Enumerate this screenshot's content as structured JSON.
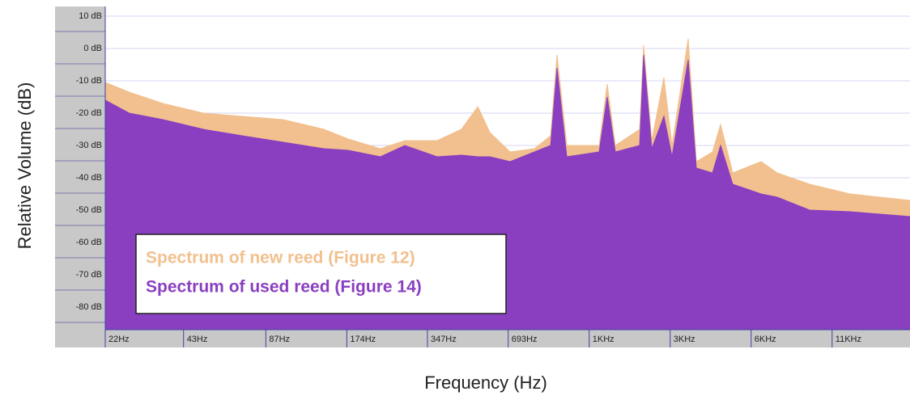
{
  "chart_data": {
    "type": "area",
    "x_label": "Frequency (Hz)",
    "y_label": "Relative Volume (dB)",
    "xscale": "log",
    "grid": true,
    "legend": "lower left",
    "xlim": [
      22,
      21600
    ],
    "ylim": [
      -87,
      13
    ],
    "xticks": [
      {
        "value": 22,
        "label": "22Hz"
      },
      {
        "value": 43,
        "label": "43Hz"
      },
      {
        "value": 87,
        "label": "87Hz"
      },
      {
        "value": 174,
        "label": "174Hz"
      },
      {
        "value": 347,
        "label": "347Hz"
      },
      {
        "value": 693,
        "label": "693Hz"
      },
      {
        "value": 1386,
        "label": "1KHz"
      },
      {
        "value": 2772,
        "label": "3KHz"
      },
      {
        "value": 5544,
        "label": "6KHz"
      },
      {
        "value": 11088,
        "label": "11KHz"
      }
    ],
    "yticks": [
      {
        "value": 10,
        "label": "10 dB"
      },
      {
        "value": 0,
        "label": "0 dB"
      },
      {
        "value": -10,
        "label": "-10 dB"
      },
      {
        "value": -20,
        "label": "-20 dB"
      },
      {
        "value": -30,
        "label": "-30 dB"
      },
      {
        "value": -40,
        "label": "-40 dB"
      },
      {
        "value": -50,
        "label": "-50 dB"
      },
      {
        "value": -60,
        "label": "-60 dB"
      },
      {
        "value": -70,
        "label": "-70 dB"
      },
      {
        "value": -80,
        "label": "-80 dB"
      }
    ],
    "x": [
      22,
      27,
      36,
      51,
      71,
      101,
      143,
      176,
      232,
      286,
      377,
      464,
      534,
      592,
      704,
      867,
      996,
      1052,
      1144,
      1509,
      1617,
      1733,
      2134,
      2209,
      2368,
      2627,
      2816,
      3234,
      3467,
      3982,
      4268,
      4736,
      6036,
      6932,
      9150,
      12940,
      21600
    ],
    "series": [
      {
        "name": "Spectrum of new reed  (Figure 12)",
        "color": "#f2c08e",
        "values": [
          -10.5,
          -13.5,
          -17,
          -20,
          -21,
          -22,
          -25,
          -28,
          -31,
          -28.5,
          -28.5,
          -25,
          -18,
          -26,
          -32,
          -31,
          -27,
          -2,
          -30,
          -30,
          -11,
          -30,
          -25,
          1,
          -28.5,
          -9,
          -30,
          3,
          -35,
          -32,
          -23.5,
          -38.5,
          -35,
          -38.5,
          -42,
          -45,
          -47
        ]
      },
      {
        "name": "Spectrum of used reed (Figure 14)",
        "color": "#8a3fc0",
        "values": [
          -16,
          -20,
          -22,
          -25,
          -27,
          -29,
          -31,
          -31.5,
          -33.5,
          -30,
          -33.5,
          -33,
          -33.5,
          -33.5,
          -35,
          -32,
          -30,
          -6,
          -33.5,
          -32,
          -15,
          -32,
          -30,
          -2,
          -31,
          -21,
          -33.5,
          -3.5,
          -37,
          -38.5,
          -30,
          -42,
          -45,
          -46,
          -50,
          -50.5,
          -52
        ]
      }
    ]
  }
}
